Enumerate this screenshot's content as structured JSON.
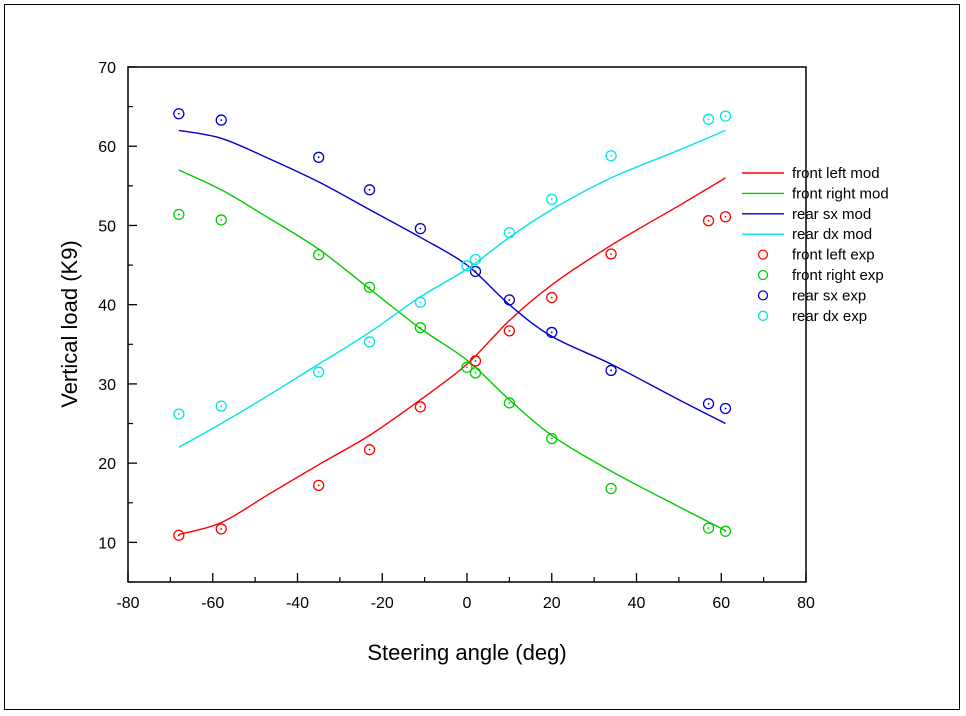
{
  "chart_data": {
    "type": "line",
    "xlabel": "Steering angle (deg)",
    "ylabel": "Vertical load (K9)",
    "xlim": [
      -80,
      80
    ],
    "ylim": [
      5,
      70
    ],
    "xticks": [
      -80,
      -60,
      -40,
      -20,
      0,
      20,
      40,
      60,
      80
    ],
    "yticks": [
      10,
      20,
      30,
      40,
      50,
      60,
      70
    ],
    "grid": false,
    "legend_position": "right",
    "series": [
      {
        "name": "front left mod",
        "kind": "line",
        "color": "#ff0000",
        "x": [
          -68,
          -58,
          -47,
          -35,
          -23,
          -11,
          0,
          10,
          20,
          34,
          50,
          61
        ],
        "y": [
          11,
          12.5,
          16,
          19.8,
          23.5,
          28,
          32.5,
          38,
          42.5,
          47.5,
          52.5,
          56
        ]
      },
      {
        "name": "front right mod",
        "kind": "line",
        "color": "#00cc00",
        "x": [
          -68,
          -58,
          -47,
          -35,
          -23,
          -11,
          0,
          10,
          20,
          34,
          50,
          61
        ],
        "y": [
          57,
          54.5,
          51,
          47,
          42,
          37,
          33,
          28,
          23.5,
          19,
          14.5,
          11.5
        ]
      },
      {
        "name": "rear sx mod",
        "kind": "line",
        "color": "#0000cc",
        "x": [
          -68,
          -58,
          -47,
          -35,
          -23,
          -11,
          0,
          10,
          20,
          34,
          50,
          61
        ],
        "y": [
          62,
          61,
          58.5,
          55.5,
          52,
          48.5,
          45,
          40,
          36,
          32.5,
          28,
          25
        ]
      },
      {
        "name": "rear dx mod",
        "kind": "line",
        "color": "#00e5e5",
        "x": [
          -68,
          -58,
          -47,
          -35,
          -23,
          -11,
          0,
          10,
          20,
          34,
          50,
          61
        ],
        "y": [
          22,
          25,
          28.5,
          32.5,
          36.5,
          41,
          44.5,
          48.5,
          52,
          56,
          59.5,
          62
        ]
      },
      {
        "name": "front left exp",
        "kind": "scatter",
        "color": "#ff0000",
        "x": [
          -68,
          -58,
          -35,
          -23,
          -11,
          2,
          10,
          20,
          34,
          57,
          61
        ],
        "y": [
          10.9,
          11.7,
          17.2,
          21.7,
          27.1,
          32.9,
          36.7,
          40.9,
          46.4,
          50.6,
          51.1
        ]
      },
      {
        "name": "front right exp",
        "kind": "scatter",
        "color": "#00cc00",
        "x": [
          -68,
          -58,
          -35,
          -23,
          -11,
          0,
          2,
          10,
          20,
          34,
          57,
          61
        ],
        "y": [
          51.4,
          50.7,
          46.3,
          42.2,
          37.1,
          32.1,
          31.4,
          27.6,
          23.1,
          16.8,
          11.8,
          11.4
        ]
      },
      {
        "name": "rear sx exp",
        "kind": "scatter",
        "color": "#0000cc",
        "x": [
          -68,
          -58,
          -35,
          -23,
          -11,
          2,
          10,
          20,
          34,
          57,
          61
        ],
        "y": [
          64.1,
          63.3,
          58.6,
          54.5,
          49.6,
          44.2,
          40.6,
          36.5,
          31.7,
          27.5,
          26.9
        ]
      },
      {
        "name": "rear dx  exp",
        "kind": "scatter",
        "color": "#00e5e5",
        "x": [
          -68,
          -58,
          -35,
          -23,
          -11,
          0,
          2,
          10,
          20,
          34,
          57,
          61
        ],
        "y": [
          26.2,
          27.2,
          31.5,
          35.3,
          40.3,
          44.9,
          45.7,
          49.1,
          53.3,
          58.8,
          63.4,
          63.8
        ]
      }
    ]
  }
}
